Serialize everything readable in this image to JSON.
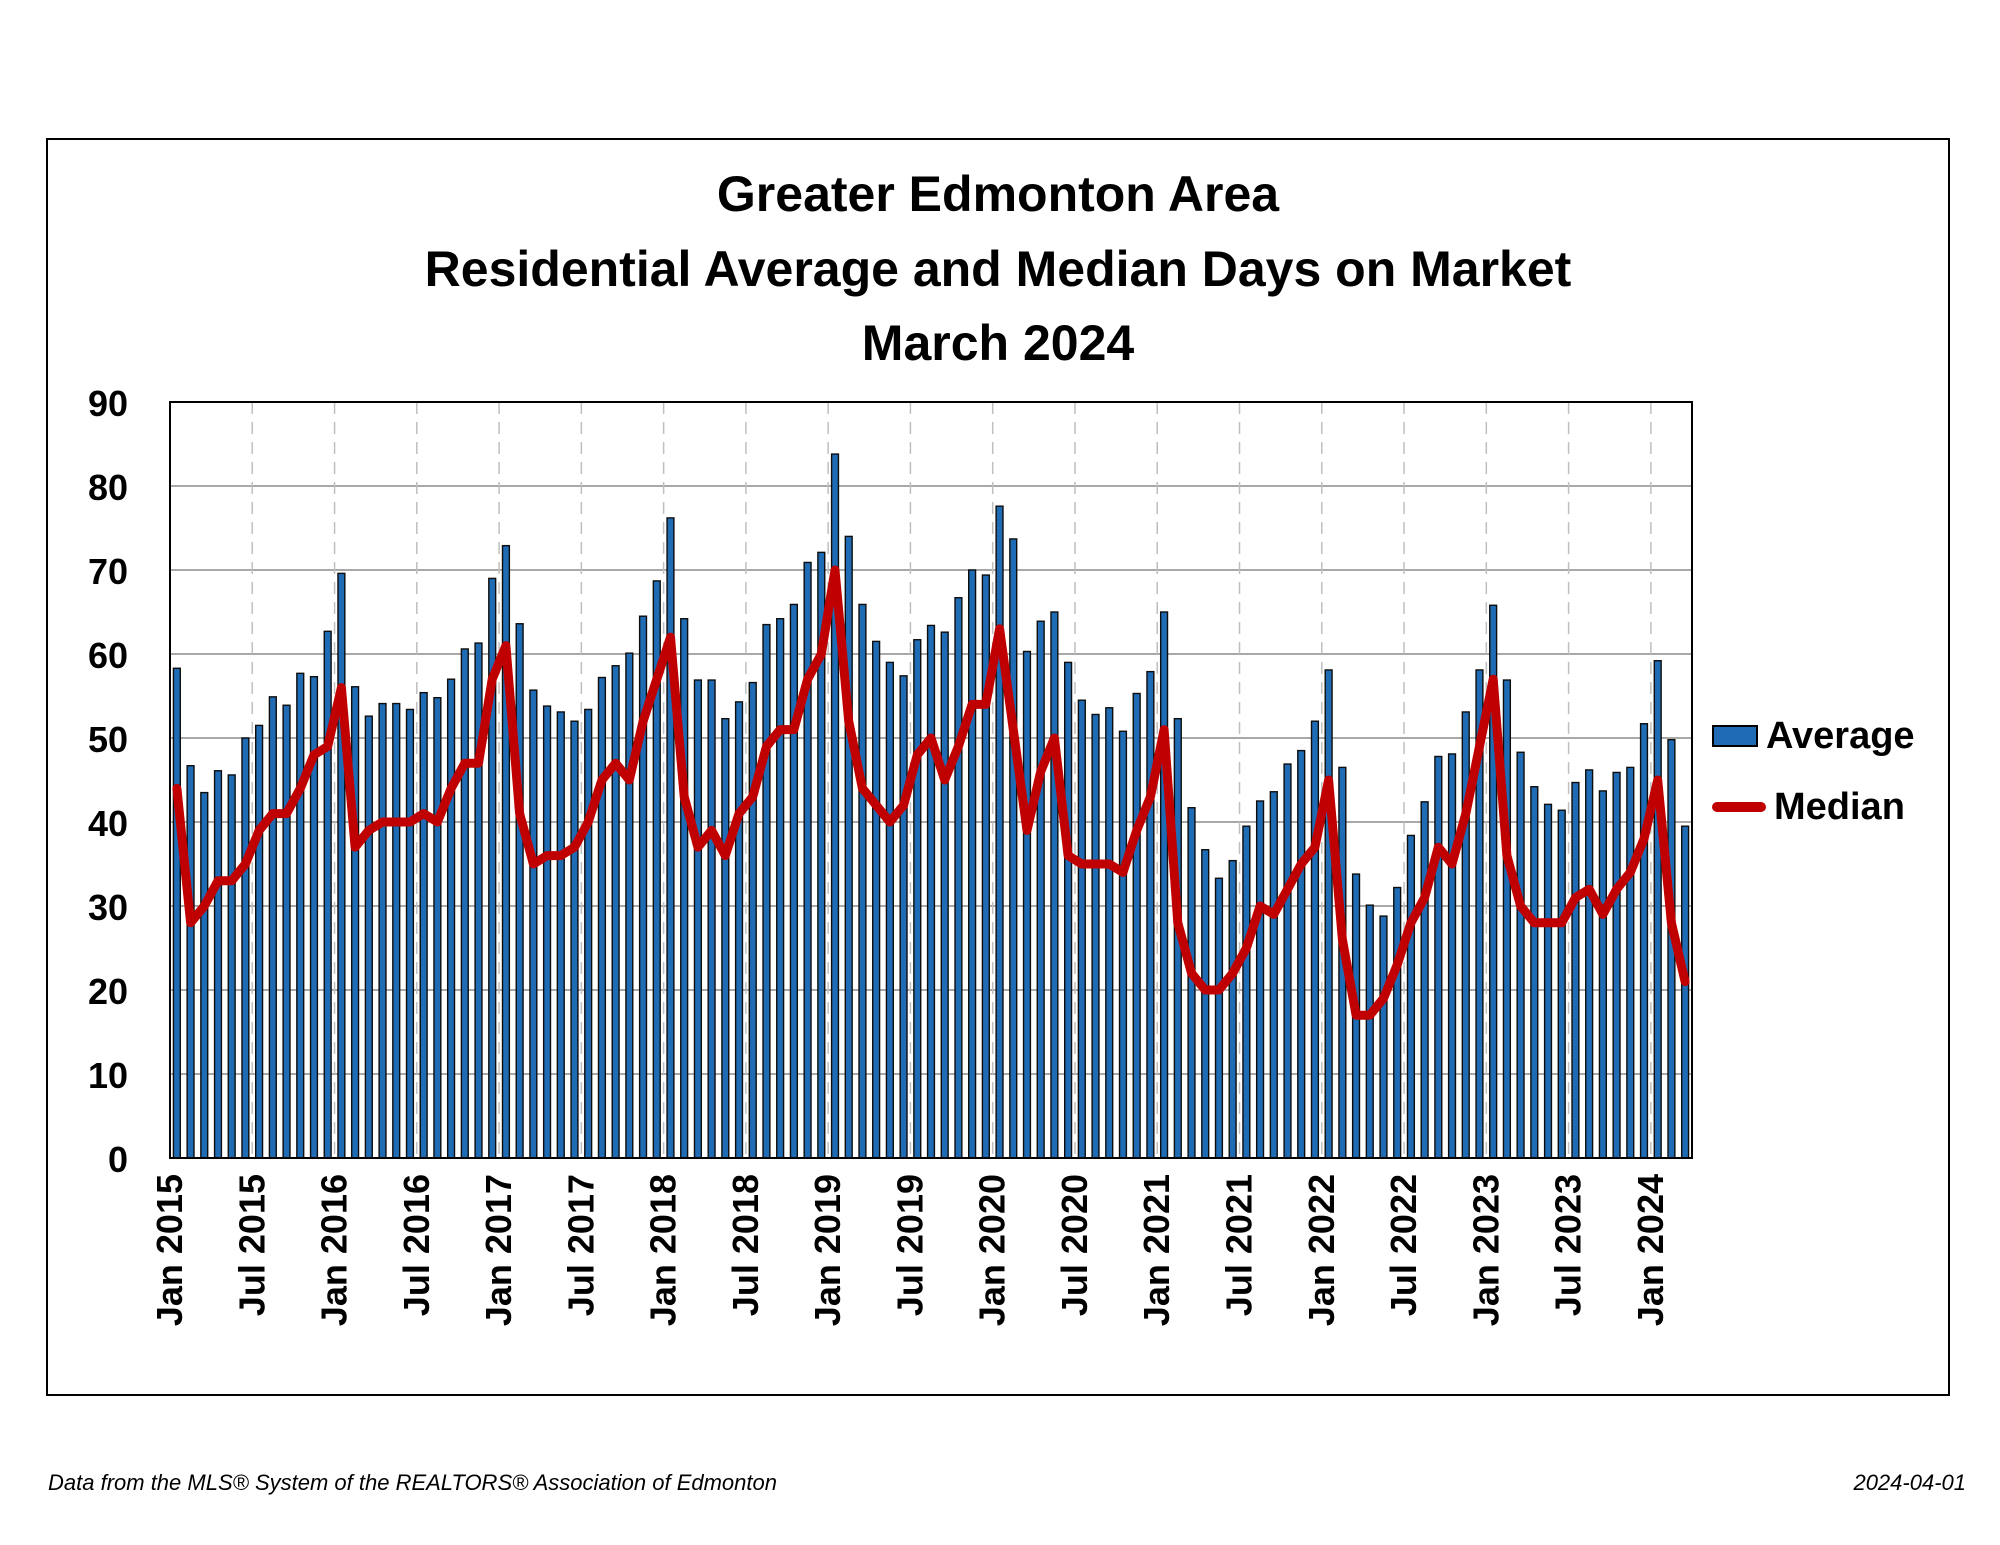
{
  "chart_data": {
    "type": "bar",
    "title": [
      "Greater Edmonton Area",
      "Residential Average and Median Days on Market",
      "March 2024"
    ],
    "xlabel": "",
    "ylabel": "",
    "ylim": [
      0,
      90
    ],
    "yticks": [
      0,
      10,
      20,
      30,
      40,
      50,
      60,
      70,
      80,
      90
    ],
    "grid": {
      "horizontal": true,
      "vertical_dashed": true
    },
    "legend_position": "right",
    "x_tick_labels": [
      {
        "index": 0,
        "label": "Jan 2015"
      },
      {
        "index": 6,
        "label": "Jul 2015"
      },
      {
        "index": 12,
        "label": "Jan 2016"
      },
      {
        "index": 18,
        "label": "Jul 2016"
      },
      {
        "index": 24,
        "label": "Jan 2017"
      },
      {
        "index": 30,
        "label": "Jul 2017"
      },
      {
        "index": 36,
        "label": "Jan 2018"
      },
      {
        "index": 42,
        "label": "Jul 2018"
      },
      {
        "index": 48,
        "label": "Jan 2019"
      },
      {
        "index": 54,
        "label": "Jul 2019"
      },
      {
        "index": 60,
        "label": "Jan 2020"
      },
      {
        "index": 66,
        "label": "Jul 2020"
      },
      {
        "index": 72,
        "label": "Jan 2021"
      },
      {
        "index": 78,
        "label": "Jul 2021"
      },
      {
        "index": 84,
        "label": "Jan 2022"
      },
      {
        "index": 90,
        "label": "Jul 2022"
      },
      {
        "index": 96,
        "label": "Jan 2023"
      },
      {
        "index": 102,
        "label": "Jul 2023"
      },
      {
        "index": 108,
        "label": "Jan 2024"
      }
    ],
    "series": [
      {
        "name": "Average",
        "kind": "bar",
        "color": "#1f6cb5",
        "values": [
          58.3,
          46.7,
          43.5,
          46.1,
          45.6,
          50,
          51.5,
          54.9,
          53.9,
          57.7,
          57.3,
          62.7,
          69.6,
          56.1,
          52.6,
          54.1,
          54.1,
          53.4,
          55.4,
          54.8,
          57,
          60.6,
          61.3,
          69,
          72.9,
          63.6,
          55.7,
          53.8,
          53.1,
          52,
          53.4,
          57.2,
          58.6,
          60.1,
          64.5,
          68.7,
          76.2,
          64.2,
          56.9,
          56.9,
          52.3,
          54.3,
          56.6,
          63.5,
          64.2,
          65.9,
          70.9,
          72.1,
          83.8,
          74,
          65.9,
          61.5,
          59,
          57.4,
          61.7,
          63.4,
          62.6,
          66.7,
          70,
          69.4,
          77.6,
          73.7,
          60.3,
          63.9,
          65,
          59,
          54.5,
          52.8,
          53.6,
          50.8,
          55.3,
          57.9,
          65,
          52.3,
          41.7,
          36.7,
          33.3,
          35.4,
          39.5,
          42.5,
          43.6,
          46.9,
          48.5,
          52,
          58.1,
          46.5,
          33.8,
          30.1,
          28.8,
          32.2,
          38.4,
          42.4,
          47.8,
          48.1,
          53.1,
          58.1,
          65.8,
          56.9,
          48.3,
          44.2,
          42.1,
          41.4,
          44.7,
          46.2,
          43.7,
          45.9,
          46.5,
          51.7,
          59.2,
          49.8,
          39.5
        ]
      },
      {
        "name": "Median",
        "kind": "line",
        "color": "#c00000",
        "values": [
          44,
          28,
          30,
          33,
          33,
          35,
          39,
          41,
          41,
          44,
          48,
          49,
          56,
          37,
          39,
          40,
          40,
          40,
          41,
          40,
          44,
          47,
          47,
          57,
          61,
          41,
          35,
          36,
          36,
          37,
          40,
          45,
          47,
          45,
          52,
          57,
          62,
          43,
          37,
          39,
          36,
          41,
          43,
          49,
          51,
          51,
          57,
          60,
          70,
          52,
          44,
          42,
          40,
          42,
          48,
          50,
          45,
          49,
          54,
          54,
          63,
          51,
          39,
          46,
          50,
          36,
          35,
          35,
          35,
          34,
          39,
          43,
          51,
          28,
          22,
          20,
          20,
          22,
          25,
          30,
          29,
          32,
          35,
          37,
          45,
          26,
          17,
          17,
          19,
          23,
          28,
          31,
          37,
          35,
          41,
          49,
          57,
          36,
          30,
          28,
          28,
          28,
          31,
          32,
          29,
          32,
          34,
          38,
          45,
          28,
          21
        ]
      }
    ]
  },
  "footer": {
    "source": "Data from the MLS® System of the REALTORS® Association of Edmonton",
    "date": "2024-04-01"
  }
}
